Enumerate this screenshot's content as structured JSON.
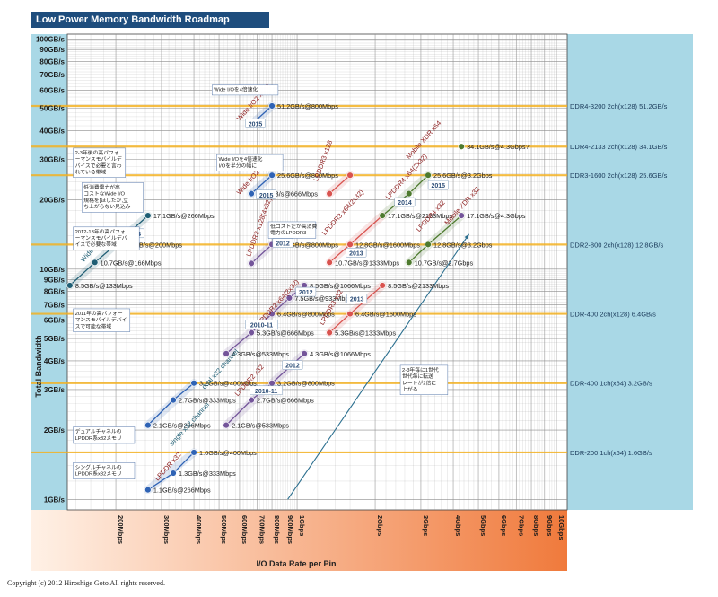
{
  "title": "Low Power Memory Bandwidth Roadmap",
  "copyright": "Copyright (c) 2012 Hiroshige Goto All rights reserved.",
  "colors": {
    "axis_bg": "#a9d8e6",
    "grid": "#8c8c8c",
    "xaxis_grad_start": "#fff1e6",
    "xaxis_grad_end": "#f07a3c",
    "ref_line": "#f4b223",
    "wideio": "#1f5e74",
    "lpddr_blue": "#2f63b5",
    "lpddr_purple": "#74559a",
    "lpddr3_red": "#d9534f",
    "mobile_green": "#4d7a2e",
    "arrow": "#2b6f8f"
  },
  "chart_data": {
    "type": "scatter",
    "xscale": "log",
    "yscale": "log",
    "xlabel": "I/O Data Rate per Pin",
    "ylabel": "Total Bandwidth",
    "xlim_mbps": [
      130,
      11000
    ],
    "ylim_gbs": [
      0.9,
      105
    ],
    "xticks": [
      {
        "v": 200,
        "label": "200Mbps"
      },
      {
        "v": 300,
        "label": "300Mbps"
      },
      {
        "v": 400,
        "label": "400Mbps"
      },
      {
        "v": 500,
        "label": "500Mbps"
      },
      {
        "v": 600,
        "label": "600Mbps"
      },
      {
        "v": 700,
        "label": "700Mbps"
      },
      {
        "v": 800,
        "label": "800Mbps"
      },
      {
        "v": 900,
        "label": "900Mbps"
      },
      {
        "v": 1000,
        "label": "1Gbps"
      },
      {
        "v": 2000,
        "label": "2Gbps"
      },
      {
        "v": 3000,
        "label": "3Gbps"
      },
      {
        "v": 4000,
        "label": "4Gbps"
      },
      {
        "v": 5000,
        "label": "5Gbps"
      },
      {
        "v": 6000,
        "label": "6Gbps"
      },
      {
        "v": 7000,
        "label": "7Gbps"
      },
      {
        "v": 8000,
        "label": "8Gbps"
      },
      {
        "v": 9000,
        "label": "9Gbps"
      },
      {
        "v": 10000,
        "label": "10Gbps"
      }
    ],
    "yticks": [
      {
        "v": 1,
        "label": "1GB/s"
      },
      {
        "v": 2,
        "label": "2GB/s"
      },
      {
        "v": 3,
        "label": "3GB/s"
      },
      {
        "v": 4,
        "label": "4GB/s"
      },
      {
        "v": 5,
        "label": "5GB/s"
      },
      {
        "v": 6,
        "label": "6GB/s"
      },
      {
        "v": 7,
        "label": "7GB/s"
      },
      {
        "v": 8,
        "label": "8GB/s"
      },
      {
        "v": 9,
        "label": "9GB/s"
      },
      {
        "v": 10,
        "label": "10GB/s"
      },
      {
        "v": 20,
        "label": "20GB/s"
      },
      {
        "v": 30,
        "label": "30GB/s"
      },
      {
        "v": 40,
        "label": "40GB/s"
      },
      {
        "v": 50,
        "label": "50GB/s"
      },
      {
        "v": 60,
        "label": "60GB/s"
      },
      {
        "v": 70,
        "label": "70GB/s"
      },
      {
        "v": 80,
        "label": "80GB/s"
      },
      {
        "v": 90,
        "label": "90GB/s"
      },
      {
        "v": 100,
        "label": "100GB/s"
      }
    ],
    "reference_lines": [
      {
        "y": 51.2,
        "label": "DDR4-3200 2ch(x128) 51.2GB/s"
      },
      {
        "y": 34.1,
        "label": "DDR4-2133 2ch(x128) 34.1GB/s"
      },
      {
        "y": 25.6,
        "label": "DDR3-1600 2ch(x128) 25.6GB/s"
      },
      {
        "y": 12.8,
        "label": "DDR2-800 2ch(x128) 12.8GB/s"
      },
      {
        "y": 6.4,
        "label": "DDR-400 2ch(x128) 6.4GB/s"
      },
      {
        "y": 3.2,
        "label": "DDR-400 1ch(x64) 3.2GB/s"
      },
      {
        "y": 1.6,
        "label": "DDR-200 1ch(x64) 1.6GB/s"
      }
    ],
    "series": [
      {
        "name": "Wide I/O x512",
        "color": "#1f5e74",
        "points": [
          {
            "x": 133,
            "y": 8.5,
            "label": "8.5GB/s@133Mbps"
          },
          {
            "x": 166,
            "y": 10.7,
            "label": "10.7GB/s@166Mbps"
          },
          {
            "x": 200,
            "y": 12.8,
            "label": "12.8GB/s@200Mbps"
          },
          {
            "x": 266,
            "y": 17.1,
            "label": "17.1GB/s@266Mbps"
          }
        ]
      },
      {
        "name": "Wide I/O2 x256",
        "color": "#2f63b5",
        "points": [
          {
            "x": 666,
            "y": 21.3,
            "label": "21.3GB/s@666Mbps"
          },
          {
            "x": 800,
            "y": 25.6,
            "label": "25.6GB/s@800Mbps"
          }
        ]
      },
      {
        "name": "Wide I/O2 x512",
        "color": "#2f63b5",
        "points": [
          {
            "x": 666,
            "y": 42.6,
            "label": ""
          },
          {
            "x": 800,
            "y": 51.2,
            "label": "51.2GB/s@800Mbps"
          }
        ]
      },
      {
        "name": "LPDDR x32",
        "color": "#2f63b5",
        "points": [
          {
            "x": 266,
            "y": 1.1,
            "label": "1.1GB/s@266Mbps"
          },
          {
            "x": 333,
            "y": 1.3,
            "label": "1.3GB/s@333Mbps"
          },
          {
            "x": 400,
            "y": 1.6,
            "label": "1.6GB/s@400Mbps"
          }
        ]
      },
      {
        "name": "LPDDR x32 dual channel",
        "color": "#2f63b5",
        "points": [
          {
            "x": 266,
            "y": 2.1,
            "label": "2.1GB/s@266Mbps"
          },
          {
            "x": 333,
            "y": 2.7,
            "label": "2.7GB/s@333Mbps"
          },
          {
            "x": 400,
            "y": 3.2,
            "label": "3.2GB/s@400Mbps"
          }
        ]
      },
      {
        "name": "LPDDR2 x32",
        "color": "#74559a",
        "points": [
          {
            "x": 533,
            "y": 2.1,
            "label": "2.1GB/s@533Mbps"
          },
          {
            "x": 666,
            "y": 2.7,
            "label": "2.7GB/s@666Mbps"
          },
          {
            "x": 800,
            "y": 3.2,
            "label": "3.2GB/s@800Mbps"
          },
          {
            "x": 1066,
            "y": 4.3,
            "label": "4.3GB/s@1066Mbps"
          }
        ]
      },
      {
        "name": "LPDDR2 x64(2x32)",
        "color": "#74559a",
        "points": [
          {
            "x": 533,
            "y": 4.3,
            "label": "4.3GB/s@533Mbps"
          },
          {
            "x": 666,
            "y": 5.3,
            "label": "5.3GB/s@666Mbps"
          },
          {
            "x": 800,
            "y": 6.4,
            "label": "6.4GB/s@800Mbps"
          },
          {
            "x": 933,
            "y": 7.5,
            "label": "7.5GB/s@933Mbps"
          },
          {
            "x": 1066,
            "y": 8.5,
            "label": "8.5GB/s@1066Mbps"
          }
        ]
      },
      {
        "name": "LPDDR2 x128(4x32)",
        "color": "#74559a",
        "points": [
          {
            "x": 666,
            "y": 10.6,
            "label": ""
          },
          {
            "x": 800,
            "y": 12.8,
            "label": "12.8GB/s@800Mbps"
          }
        ]
      },
      {
        "name": "LPDDR3 x32",
        "color": "#d9534f",
        "points": [
          {
            "x": 1333,
            "y": 5.3,
            "label": "5.3GB/s@1333Mbps"
          },
          {
            "x": 1600,
            "y": 6.4,
            "label": "6.4GB/s@1600Mbps"
          },
          {
            "x": 2133,
            "y": 8.5,
            "label": "8.5GB/s@2133Mbps"
          }
        ]
      },
      {
        "name": "LPDDR3 x64(2x32)",
        "color": "#d9534f",
        "points": [
          {
            "x": 1333,
            "y": 10.7,
            "label": "10.7GB/s@1333Mbps"
          },
          {
            "x": 1600,
            "y": 12.8,
            "label": "12.8GB/s@1600Mbps"
          },
          {
            "x": 2133,
            "y": 17.1,
            "label": "17.1GB/s@2133Mbps"
          }
        ]
      },
      {
        "name": "LPDDR3 x128",
        "color": "#d9534f",
        "points": [
          {
            "x": 1333,
            "y": 21.3,
            "label": ""
          },
          {
            "x": 1600,
            "y": 25.6,
            "label": ""
          }
        ]
      },
      {
        "name": "LPDDR4 x32",
        "color": "#4d7a2e",
        "points": [
          {
            "x": 2700,
            "y": 10.7,
            "label": "10.7GB/s@2.7Gbps"
          },
          {
            "x": 3200,
            "y": 12.8,
            "label": "12.8GB/s@3.2Gbps"
          },
          {
            "x": 4300,
            "y": 17.1,
            "label": "17.1GB/s@4.3Gbps"
          }
        ]
      },
      {
        "name": "LPDDR4 x64(2x32)",
        "color": "#4d7a2e",
        "points": [
          {
            "x": 2133,
            "y": 17.1,
            "label": ""
          },
          {
            "x": 2700,
            "y": 21.3,
            "label": ""
          },
          {
            "x": 3200,
            "y": 25.6,
            "label": "25.6GB/s@3.2Gbps"
          }
        ]
      },
      {
        "name": "Mobile XDR x64",
        "color": "#4d7a2e",
        "points": [
          {
            "x": 4300,
            "y": 34.1,
            "label": "34.1GB/s@4.3Gbps?"
          }
        ]
      },
      {
        "name": "Mobile XDR x32",
        "color": "#74559a",
        "points": [
          {
            "x": 4300,
            "y": 17.1,
            "label": ""
          }
        ]
      }
    ],
    "series_labels": [
      {
        "text": "Wide I/O x512",
        "x": 150,
        "y": 10.7,
        "angle": -48,
        "color": "#1f5e74"
      },
      {
        "text": "Wide I/O2 x512",
        "x": 600,
        "y": 44,
        "angle": -48,
        "color": "#8b1a1a"
      },
      {
        "text": "Wide I/O2 x256",
        "x": 600,
        "y": 21,
        "angle": -48,
        "color": "#8b1a1a"
      },
      {
        "text": "LPDDR3 x128",
        "x": 1200,
        "y": 24,
        "angle": -70,
        "color": "#8b1a1a"
      },
      {
        "text": "Mobile XDR x64",
        "x": 2700,
        "y": 30,
        "angle": -48,
        "color": "#8b1a1a"
      },
      {
        "text": "LPDDR4 x64(2x32)",
        "x": 2250,
        "y": 20,
        "angle": -48,
        "color": "#8b1a1a"
      },
      {
        "text": "Mobile XDR x32",
        "x": 3800,
        "y": 15.5,
        "angle": -48,
        "color": "#8b1a1a"
      },
      {
        "text": "LPDDR4 x32",
        "x": 2950,
        "y": 14.5,
        "angle": -48,
        "color": "#8b1a1a"
      },
      {
        "text": "LPDDR3 x64(2x32)",
        "x": 1280,
        "y": 14,
        "angle": -48,
        "color": "#8b1a1a"
      },
      {
        "text": "LPDDR2 x128(4x32)",
        "x": 660,
        "y": 11.3,
        "angle": -70,
        "color": "#8b1a1a"
      },
      {
        "text": "LPDDR2 x64(2x32)",
        "x": 720,
        "y": 5.7,
        "angle": -48,
        "color": "#8b1a1a"
      },
      {
        "text": "LPDDR3 x32",
        "x": 1260,
        "y": 5.7,
        "angle": -60,
        "color": "#8b1a1a"
      },
      {
        "text": "LPDDR2 x32",
        "x": 590,
        "y": 2.8,
        "angle": -48,
        "color": "#8b1a1a"
      },
      {
        "text": "dual x32 channel",
        "x": 440,
        "y": 3.0,
        "angle": -48,
        "color": "#1f5e74"
      },
      {
        "text": "single x32 channel",
        "x": 330,
        "y": 1.7,
        "angle": -48,
        "color": "#1f5e74"
      },
      {
        "text": "LPDDR x32",
        "x": 290,
        "y": 1.2,
        "angle": -48,
        "color": "#8b1a1a"
      }
    ],
    "year_tags": [
      {
        "text": "2015",
        "x": 690,
        "y": 42.6
      },
      {
        "text": "2015",
        "x": 760,
        "y": 20.9
      },
      {
        "text": "2014",
        "x": 235,
        "y": 14.2
      },
      {
        "text": "2012",
        "x": 880,
        "y": 12.9
      },
      {
        "text": "2013",
        "x": 1690,
        "y": 11.7
      },
      {
        "text": "2012",
        "x": 1080,
        "y": 7.9
      },
      {
        "text": "2010-11",
        "x": 730,
        "y": 5.7
      },
      {
        "text": "2012",
        "x": 960,
        "y": 3.8
      },
      {
        "text": "2013",
        "x": 1700,
        "y": 7.4
      },
      {
        "text": "2010-11",
        "x": 760,
        "y": 2.95
      },
      {
        "text": "2014",
        "x": 2600,
        "y": 19.4
      },
      {
        "text": "2015",
        "x": 3500,
        "y": 23.0
      }
    ],
    "notes": [
      {
        "text": [
          "Wide I/Oを4倍速化"
        ],
        "x": 470,
        "y": 60
      },
      {
        "text": [
          "Wide I/Oを4倍速化",
          "I/Oを半分の幅に"
        ],
        "x": 490,
        "y": 29
      },
      {
        "text": [
          "2-3年後の高パフォ",
          "ーマンスモバイルデ",
          "バイスで必要と言わ",
          "れている帯域"
        ],
        "x": 137,
        "y": 29
      },
      {
        "text": [
          "低消費電力が高",
          "コストなWide I/O",
          "規格を[ほしたが,立",
          "ち上がらない見込み"
        ],
        "x": 148,
        "y": 20.5
      },
      {
        "text": [
          "2012-13年の高パフォ",
          "ーマンスモバイルデバ",
          "イスで必要な帯域"
        ],
        "x": 137,
        "y": 13.6
      },
      {
        "text": [
          "低コストだが高消費",
          "電力のLPDDR3"
        ],
        "x": 775,
        "y": 14.8
      },
      {
        "text": [
          "2011年の高パフォー",
          "マンスモバイルデバイ",
          "スで可能な帯域"
        ],
        "x": 137,
        "y": 6.0
      },
      {
        "text": [
          "デュアルチャネルの",
          "LPDDR系x32メモリ"
        ],
        "x": 137,
        "y": 1.9
      },
      {
        "text": [
          "シングルチャネルの",
          "LPDDR系x32メモリ"
        ],
        "x": 137,
        "y": 1.33
      },
      {
        "text": [
          "2-3年毎に1世代",
          "世代毎に転送",
          "レートが2倍に",
          "上がる"
        ],
        "x": 2500,
        "y": 3.3
      }
    ]
  }
}
